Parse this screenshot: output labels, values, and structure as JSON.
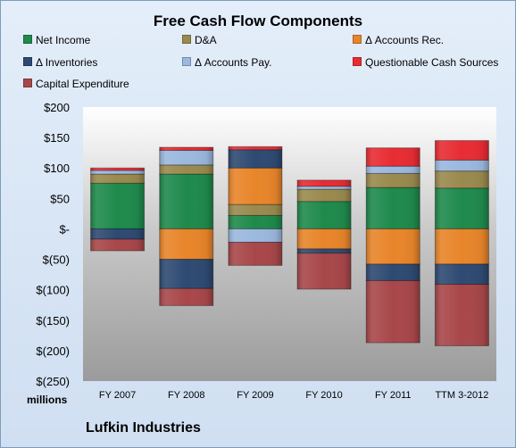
{
  "chart_data": {
    "type": "bar",
    "stacked": true,
    "title": "Free Cash Flow Components",
    "units_label": "millions",
    "footer": "Lufkin Industries",
    "categories": [
      "FY 2007",
      "FY 2008",
      "FY 2009",
      "FY 2010",
      "FY 2011",
      "TTM 3-2012"
    ],
    "ylim": [
      -250,
      200
    ],
    "yticks": [
      200,
      150,
      100,
      50,
      0,
      -50,
      -100,
      -150,
      -200,
      -250
    ],
    "ytick_labels": [
      "$200",
      "$150",
      "$100",
      "$50",
      "$-",
      "$(50)",
      "$(100)",
      "$(150)",
      "$(200)",
      "$(250)"
    ],
    "grid": false,
    "legend_position": "top",
    "series": [
      {
        "name": "Net Income",
        "color": "#1f8a4c",
        "values": [
          75,
          90,
          22,
          45,
          68,
          67
        ]
      },
      {
        "name": "D&A",
        "color": "#9a8a4e",
        "values": [
          15,
          15,
          18,
          20,
          23,
          28
        ]
      },
      {
        "name": "Δ Accounts Rec.",
        "color": "#e8852a",
        "values": [
          0,
          -50,
          60,
          -33,
          -58,
          -58
        ]
      },
      {
        "name": "Δ Inventories",
        "color": "#2e4a72",
        "values": [
          -17,
          -48,
          30,
          -7,
          -27,
          -33
        ]
      },
      {
        "name": "Δ Accounts Pay.",
        "color": "#9bb8de",
        "values": [
          6,
          24,
          -22,
          5,
          12,
          18
        ]
      },
      {
        "name": "Questionable Cash Sources",
        "color": "#e82c33",
        "values": [
          4,
          5,
          5,
          10,
          30,
          32
        ]
      },
      {
        "name": "Capital Expenditure",
        "color": "#a8474a",
        "values": [
          -19,
          -28,
          -38,
          -59,
          -102,
          -101
        ]
      }
    ]
  }
}
